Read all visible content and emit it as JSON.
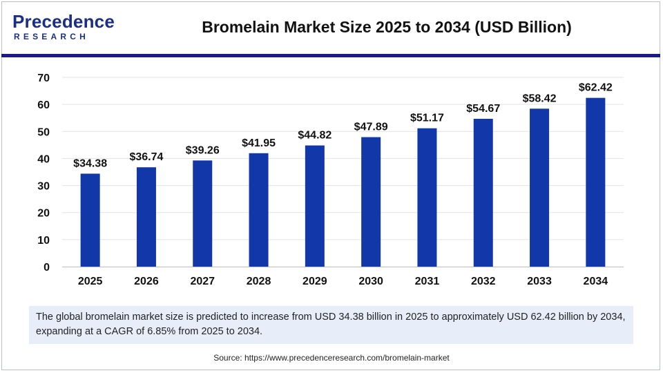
{
  "logo": {
    "word": "Precedence",
    "sub": "RESEARCH"
  },
  "colors": {
    "bar": "#1237a8",
    "brand": "#1a2f86",
    "rule": "#1a1a8c",
    "note_bg": "#e7eefa"
  },
  "chart_data": {
    "type": "bar",
    "title": "Bromelain Market Size 2025 to 2034 (USD Billion)",
    "xlabel": "",
    "ylabel": "",
    "categories": [
      "2025",
      "2026",
      "2027",
      "2028",
      "2029",
      "2030",
      "2031",
      "2032",
      "2033",
      "2034"
    ],
    "values": [
      34.38,
      36.74,
      39.26,
      41.95,
      44.82,
      47.89,
      51.17,
      54.67,
      58.42,
      62.42
    ],
    "data_labels": [
      "$34.38",
      "$36.74",
      "$39.26",
      "$41.95",
      "$44.82",
      "$47.89",
      "$51.17",
      "$54.67",
      "$58.42",
      "$62.42"
    ],
    "ylim": [
      0,
      70
    ],
    "yticks": [
      0,
      10,
      20,
      30,
      40,
      50,
      60,
      70
    ],
    "grid": true,
    "legend": "none"
  },
  "note": "The global bromelain market size is predicted to increase from USD 34.38 billion in 2025 to approximately USD 62.42 billion by 2034, expanding at a CAGR of 6.85% from 2025 to 2034.",
  "source": "Source: https://www.precedenceresearch.com/bromelain-market"
}
